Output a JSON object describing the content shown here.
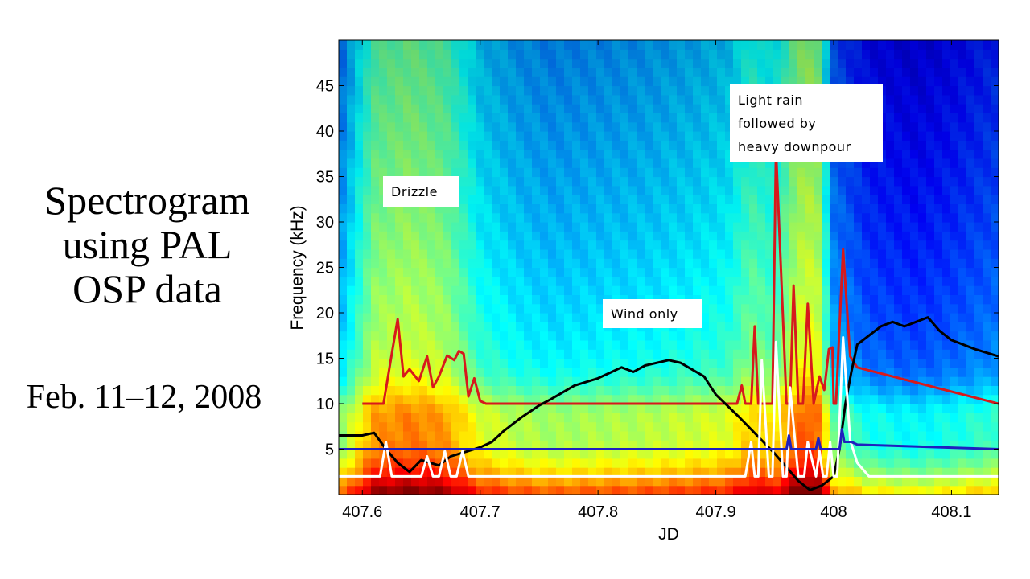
{
  "slide": {
    "title_lines": [
      "Spectrogram",
      "using PAL",
      "OSP data"
    ],
    "date": "Feb. 11–12, 2008"
  },
  "chart_data": {
    "type": "heatmap",
    "title": "",
    "xlabel": "JD",
    "ylabel": "Frequency (kHz)",
    "xlim": [
      407.58,
      408.14
    ],
    "ylim": [
      0,
      50
    ],
    "x_ticks": [
      "407.6",
      "407.7",
      "407.8",
      "407.9",
      "408",
      "408.1"
    ],
    "x_tick_values": [
      407.6,
      407.7,
      407.8,
      407.9,
      408.0,
      408.1
    ],
    "y_ticks": [
      "5",
      "10",
      "15",
      "20",
      "25",
      "30",
      "35",
      "40",
      "45"
    ],
    "y_tick_values": [
      5,
      10,
      15,
      20,
      25,
      30,
      35,
      40,
      45
    ],
    "colormap": "jet",
    "spectrogram_columns": [
      {
        "jd": 407.58,
        "intensity": 0.32
      },
      {
        "jd": 407.61,
        "intensity": 0.55
      },
      {
        "jd": 407.64,
        "intensity": 0.58
      },
      {
        "jd": 407.67,
        "intensity": 0.55
      },
      {
        "jd": 407.7,
        "intensity": 0.42
      },
      {
        "jd": 407.73,
        "intensity": 0.38
      },
      {
        "jd": 407.76,
        "intensity": 0.36
      },
      {
        "jd": 407.8,
        "intensity": 0.37
      },
      {
        "jd": 407.84,
        "intensity": 0.38
      },
      {
        "jd": 407.88,
        "intensity": 0.4
      },
      {
        "jd": 407.91,
        "intensity": 0.42
      },
      {
        "jd": 407.93,
        "intensity": 0.5
      },
      {
        "jd": 407.95,
        "intensity": 0.46
      },
      {
        "jd": 407.97,
        "intensity": 0.6
      },
      {
        "jd": 407.985,
        "intensity": 0.62
      },
      {
        "jd": 408.0,
        "intensity": 0.3
      },
      {
        "jd": 408.03,
        "intensity": 0.22
      },
      {
        "jd": 408.07,
        "intensity": 0.2
      },
      {
        "jd": 408.1,
        "intensity": 0.22
      },
      {
        "jd": 408.14,
        "intensity": 0.26
      }
    ],
    "series": [
      {
        "color": "#d7191c",
        "x": [
          407.6,
          407.618,
          407.625,
          407.63,
          407.635,
          407.64,
          407.648,
          407.655,
          407.66,
          407.665,
          407.672,
          407.678,
          407.682,
          407.686,
          407.69,
          407.695,
          407.7,
          407.705,
          407.71,
          407.9,
          407.918,
          407.922,
          407.925,
          407.93,
          407.933,
          407.936,
          407.945,
          407.948,
          407.951,
          407.96,
          407.963,
          407.966,
          407.97,
          407.974,
          407.978,
          407.983,
          407.988,
          407.992,
          407.996,
          407.999,
          408.0,
          408.002,
          408.008,
          408.014,
          408.02,
          408.14
        ],
        "y": [
          10,
          10,
          15.5,
          19.3,
          13,
          13.8,
          12.5,
          15.2,
          11.8,
          13,
          15.3,
          14.8,
          15.8,
          15.5,
          10.8,
          12.8,
          10.3,
          10,
          10,
          10,
          10,
          12,
          10,
          10,
          18.5,
          10,
          10,
          10,
          38,
          10,
          10,
          23,
          10,
          10,
          21,
          10,
          13,
          11.5,
          16,
          16.2,
          10,
          10,
          27,
          15.2,
          14,
          10
        ]
      },
      {
        "color": "#000000",
        "x": [
          407.58,
          407.6,
          407.61,
          407.62,
          407.63,
          407.64,
          407.65,
          407.665,
          407.675,
          407.69,
          407.7,
          407.71,
          407.72,
          407.735,
          407.75,
          407.76,
          407.78,
          407.8,
          407.82,
          407.83,
          407.84,
          407.86,
          407.87,
          407.89,
          407.9,
          407.92,
          407.935,
          407.95,
          407.96,
          407.97,
          407.98,
          407.99,
          408.0,
          408.005,
          408.01,
          408.015,
          408.02,
          408.04,
          408.05,
          408.06,
          408.08,
          408.09,
          408.1,
          408.12,
          408.14
        ],
        "y": [
          6.5,
          6.5,
          6.8,
          5,
          3.5,
          2.5,
          3.8,
          3.2,
          4.2,
          4.8,
          5.2,
          5.8,
          7,
          8.5,
          9.8,
          10.5,
          12,
          12.8,
          14,
          13.5,
          14.2,
          14.8,
          14.5,
          13,
          11,
          8.5,
          6.5,
          4.5,
          3,
          1.5,
          0.5,
          1,
          2,
          5,
          10,
          13.5,
          16.5,
          18.5,
          19,
          18.5,
          19.5,
          18,
          17,
          16,
          15.2
        ]
      },
      {
        "color": "#ffffff",
        "x": [
          407.58,
          407.605,
          407.615,
          407.62,
          407.625,
          407.63,
          407.64,
          407.645,
          407.65,
          407.655,
          407.66,
          407.665,
          407.67,
          407.675,
          407.68,
          407.685,
          407.69,
          407.695,
          407.7,
          407.92,
          407.925,
          407.93,
          407.933,
          407.936,
          407.939,
          407.945,
          407.948,
          407.951,
          407.957,
          407.96,
          407.963,
          407.97,
          407.975,
          407.978,
          407.985,
          407.988,
          407.991,
          407.994,
          407.997,
          408.0,
          408.003,
          408.008,
          408.014,
          408.02,
          408.03,
          408.14
        ],
        "y": [
          2,
          2,
          2,
          5.8,
          2,
          2,
          2,
          2,
          2,
          4.2,
          2,
          2,
          4.8,
          2,
          2,
          4.8,
          2,
          2,
          2,
          2,
          2,
          5.8,
          2,
          2,
          14.8,
          2,
          2,
          16.8,
          2,
          2,
          11.8,
          2,
          2,
          5.8,
          2,
          4.8,
          2,
          2,
          5.8,
          2,
          2,
          17.3,
          6,
          3.5,
          2,
          2
        ]
      },
      {
        "color": "#1f1fbf",
        "x": [
          407.58,
          407.96,
          407.962,
          407.964,
          407.985,
          407.987,
          407.989,
          408.005,
          408.007,
          408.009,
          408.015,
          408.02,
          408.14
        ],
        "y": [
          5,
          5,
          6.5,
          5,
          5,
          6.2,
          5,
          5,
          7.2,
          5.8,
          5.8,
          5.5,
          5
        ]
      }
    ],
    "annotations": [
      {
        "lines": [
          "Drizzle"
        ]
      },
      {
        "lines": [
          "Wind only"
        ]
      },
      {
        "lines": [
          "Light rain",
          "followed by",
          "heavy downpour"
        ]
      }
    ]
  }
}
